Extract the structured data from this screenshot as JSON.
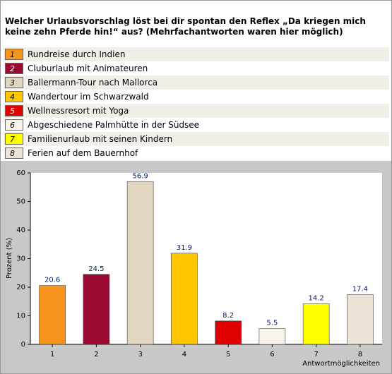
{
  "chart_data": {
    "type": "bar",
    "title": "Welcher Urlaubsvorschlag löst bei dir spontan den Reflex „Da kriegen mich keine zehn Pferde hin!“ aus? (Mehrfachantworten waren hier möglich)",
    "categories": [
      "1",
      "2",
      "3",
      "4",
      "5",
      "6",
      "7",
      "8"
    ],
    "descriptions": [
      "Rundreise durch Indien",
      "Cluburlaub mit Animateuren",
      "Ballermann-Tour nach Mallorca",
      "Wandertour im Schwarzwald",
      "Wellnessresort mit Yoga",
      "Abgeschiedene Palmhütte in der Südsee",
      "Familienurlaub mit seinen Kindern",
      "Ferien auf dem Bauernhof"
    ],
    "values": [
      20.6,
      24.5,
      56.9,
      31.9,
      8.2,
      5.5,
      14.2,
      17.4
    ],
    "colors": [
      "#f7941d",
      "#9b0a33",
      "#e3d6c1",
      "#ffc600",
      "#e00000",
      "#f8f4ea",
      "#ffff00",
      "#ece4d6"
    ],
    "ylabel": "Prozent (%)",
    "xlabel": "Antwortmöglichkeiten",
    "ylim": [
      0,
      60
    ],
    "yticks": [
      0,
      10,
      20,
      30,
      40,
      50,
      60
    ],
    "grid": false
  }
}
